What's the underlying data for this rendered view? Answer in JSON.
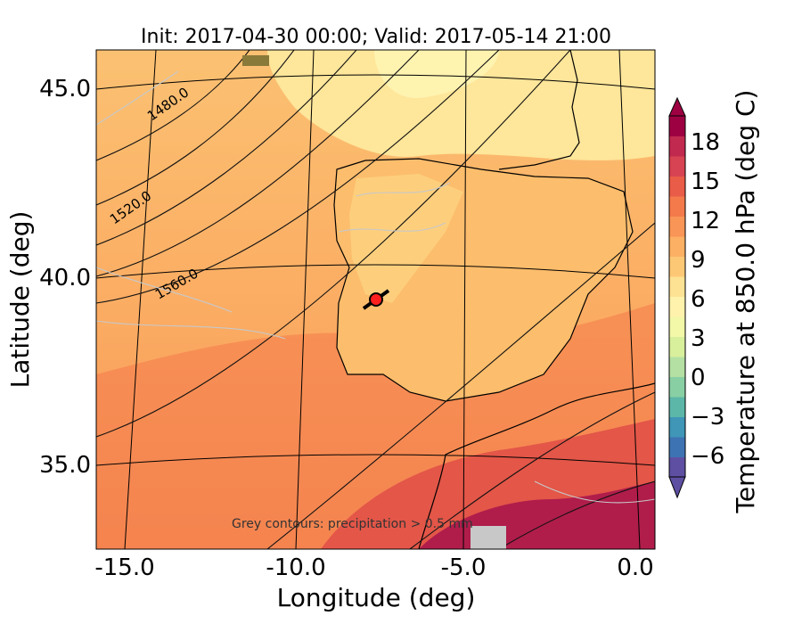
{
  "figure": {
    "title": "Init: 2017-04-30 00:00; Valid: 2017-05-14 21:00",
    "xlabel": "Longitude (deg)",
    "ylabel": "Latitude (deg)",
    "x_ticks": [
      "-15.0",
      "-10.0",
      "-5.0",
      "0.0"
    ],
    "y_ticks": [
      "45.0",
      "40.0",
      "35.0"
    ],
    "annotation": "Grey contours: precipitation > 0.5 mm"
  },
  "contours": {
    "labels": [
      "1480.0",
      "1520.0",
      "1560.0"
    ]
  },
  "colorbar": {
    "label": "Temperature at 850.0 hPa (deg C)",
    "ticks": [
      "18",
      "15",
      "12",
      "9",
      "6",
      "3",
      "0",
      "−3",
      "−6"
    ],
    "colors": [
      "#5e4fa2",
      "#3e73b3",
      "#3f96b7",
      "#5cb7a9",
      "#88cfa4",
      "#b4e0a3",
      "#d8ef9c",
      "#f2f8a8",
      "#fff2ac",
      "#fee293",
      "#fdc876",
      "#fcb063",
      "#f99556",
      "#f47a4b",
      "#e95c47",
      "#d74352",
      "#c2294f",
      "#9e0142"
    ]
  },
  "map_colors": {
    "land_cool": "#fee69a",
    "land_mid": "#fdc474",
    "sea_mid": "#fbab62",
    "sea_warm": "#f69054",
    "hot": "#e8624a",
    "very_hot": "#b01d4b"
  },
  "marker": {
    "longitude": -7.5,
    "latitude": 39.3,
    "color": "#ff1f1f"
  }
}
